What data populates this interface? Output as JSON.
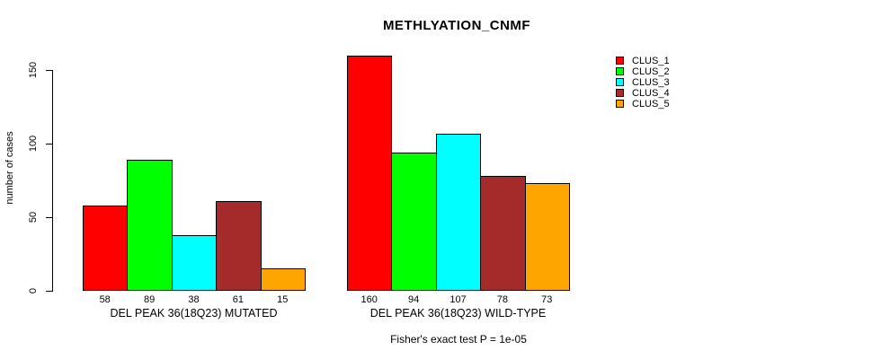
{
  "chart_data": {
    "type": "bar",
    "title": "METHLYATION_CNMF",
    "ylabel": "number of cases",
    "yticks": [
      0,
      50,
      100,
      150
    ],
    "ylim": [
      0,
      160
    ],
    "grid": false,
    "legend_position": "right",
    "categories": [
      "DEL PEAK 36(18Q23) MUTATED",
      "DEL PEAK 36(18Q23) WILD-TYPE"
    ],
    "series": [
      {
        "name": "CLUS_1",
        "color": "#FF0000",
        "values": [
          58,
          160
        ]
      },
      {
        "name": "CLUS_2",
        "color": "#00FF00",
        "values": [
          89,
          94
        ]
      },
      {
        "name": "CLUS_3",
        "color": "#00FFFF",
        "values": [
          38,
          107
        ]
      },
      {
        "name": "CLUS_4",
        "color": "#A52A2A",
        "values": [
          61,
          78
        ]
      },
      {
        "name": "CLUS_5",
        "color": "#FFA500",
        "values": [
          15,
          73
        ]
      }
    ],
    "bar_value_labels": {
      "DEL PEAK 36(18Q23) MUTATED": [
        58,
        89,
        38,
        61,
        15
      ],
      "DEL PEAK 36(18Q23) WILD-TYPE": [
        160,
        94,
        107,
        78,
        73
      ]
    },
    "annotation": "Fisher's exact test P = 1e-05"
  }
}
